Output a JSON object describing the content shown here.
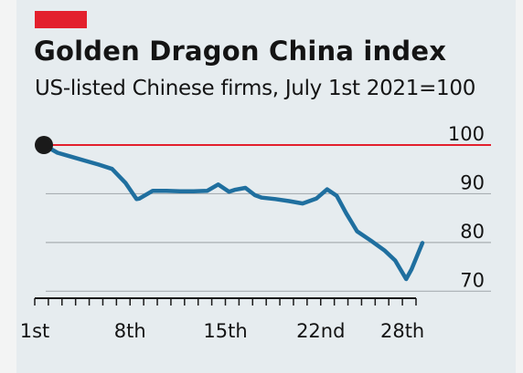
{
  "chart_data": {
    "type": "line",
    "title": "Golden Dragon China index",
    "subtitle": "US-listed Chinese firms, July 1st 2021=100",
    "xlabel": "",
    "ylabel": "",
    "x_tick_labels": [
      {
        "day": 1,
        "label": "1st"
      },
      {
        "day": 8,
        "label": "8th"
      },
      {
        "day": 15,
        "label": "15th"
      },
      {
        "day": 22,
        "label": "22nd"
      },
      {
        "day": 28,
        "label": "28th"
      }
    ],
    "xlim": [
      1,
      29
    ],
    "ylim": [
      68,
      100
    ],
    "y_ticks": [
      100,
      90,
      80,
      70
    ],
    "reference_line": 100,
    "grid": true,
    "series": [
      {
        "color": "#1f6f9f",
        "points": [
          {
            "x": 1,
            "y": 100.0
          },
          {
            "x": 2,
            "y": 98.4
          },
          {
            "x": 3,
            "y": 97.6
          },
          {
            "x": 4,
            "y": 96.8
          },
          {
            "x": 5,
            "y": 96.0
          },
          {
            "x": 6,
            "y": 95.1
          },
          {
            "x": 7,
            "y": 92.2
          },
          {
            "x": 7.8,
            "y": 88.9
          },
          {
            "x": 8,
            "y": 89.0
          },
          {
            "x": 9,
            "y": 90.6
          },
          {
            "x": 10,
            "y": 90.6
          },
          {
            "x": 11,
            "y": 90.5
          },
          {
            "x": 12,
            "y": 90.5
          },
          {
            "x": 13,
            "y": 90.6
          },
          {
            "x": 13.8,
            "y": 91.9
          },
          {
            "x": 14.6,
            "y": 90.4
          },
          {
            "x": 15,
            "y": 90.8
          },
          {
            "x": 15.8,
            "y": 91.2
          },
          {
            "x": 16.5,
            "y": 89.7
          },
          {
            "x": 17,
            "y": 89.2
          },
          {
            "x": 18,
            "y": 88.9
          },
          {
            "x": 19,
            "y": 88.5
          },
          {
            "x": 20,
            "y": 88.0
          },
          {
            "x": 21,
            "y": 89.0
          },
          {
            "x": 21.8,
            "y": 90.9
          },
          {
            "x": 22.5,
            "y": 89.6
          },
          {
            "x": 23.2,
            "y": 86.0
          },
          {
            "x": 24,
            "y": 82.3
          },
          {
            "x": 25,
            "y": 80.4
          },
          {
            "x": 26,
            "y": 78.4
          },
          {
            "x": 26.8,
            "y": 76.3
          },
          {
            "x": 27.6,
            "y": 72.5
          },
          {
            "x": 28,
            "y": 74.5
          },
          {
            "x": 28.8,
            "y": 79.9
          }
        ]
      }
    ],
    "start_marker": {
      "x": 1,
      "y": 100,
      "color": "#1a1a1a"
    },
    "colors": {
      "reference": "#e3202d",
      "grid": "#a8aeb2",
      "axis": "#1a1a1a",
      "line": "#1f6f9f",
      "background": "#e6ecef"
    }
  }
}
